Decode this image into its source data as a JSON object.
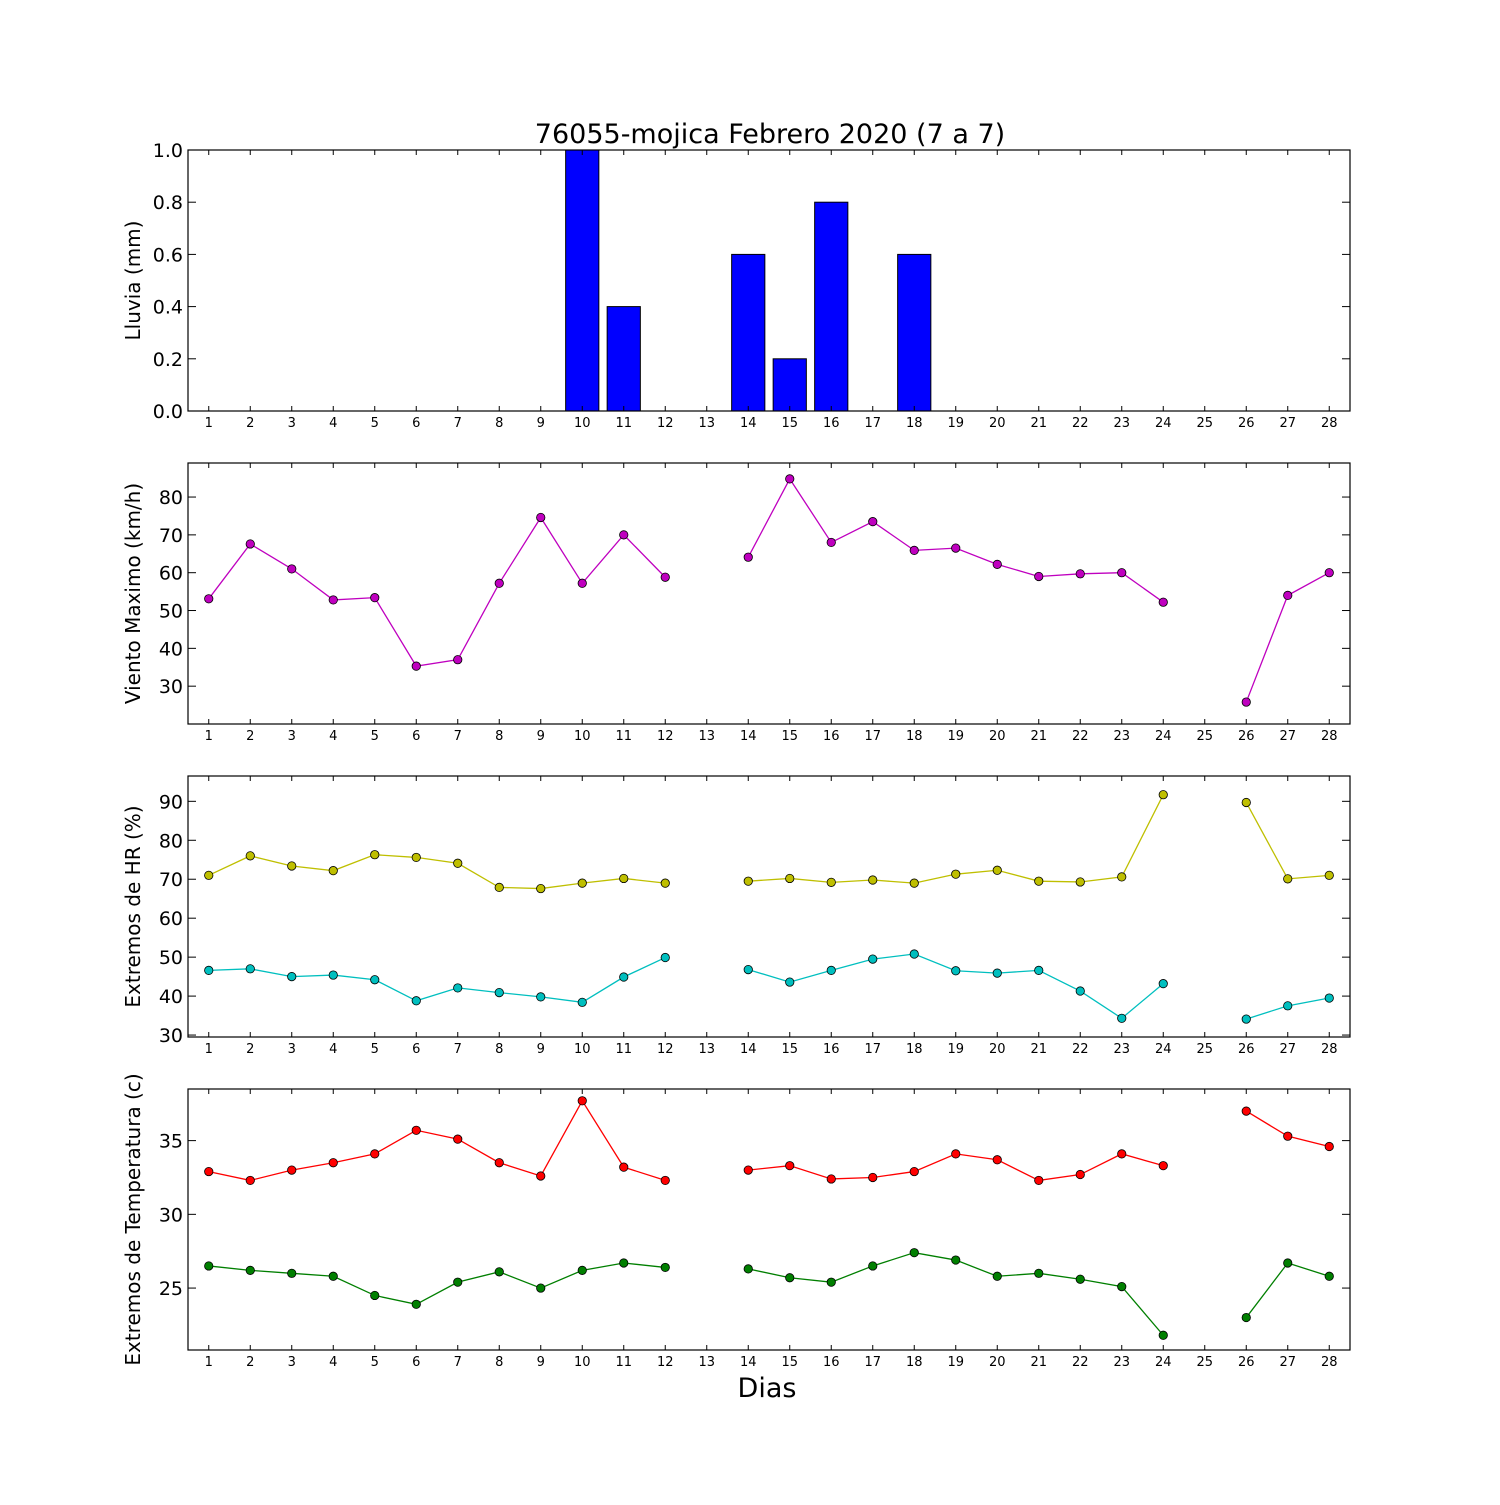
{
  "chart_data": [
    {
      "type": "bar",
      "title": "76055-mojica Febrero 2020  (7 a 7)",
      "xlabel": "",
      "ylabel": "Lluvia (mm)",
      "ylim": [
        0,
        1.0
      ],
      "yticks": [
        0.0,
        0.2,
        0.4,
        0.6,
        0.8,
        1.0
      ],
      "ytick_labels": [
        "0.0",
        "0.2",
        "0.4",
        "0.6",
        "0.8",
        "1.0"
      ],
      "xlim": [
        0.5,
        28.5
      ],
      "x_ticks": [
        1,
        2,
        3,
        4,
        5,
        6,
        7,
        8,
        9,
        10,
        11,
        12,
        13,
        14,
        15,
        16,
        17,
        18,
        19,
        20,
        21,
        22,
        23,
        24,
        25,
        26,
        27,
        28
      ],
      "x": [
        1,
        2,
        3,
        4,
        5,
        6,
        7,
        8,
        9,
        10,
        11,
        12,
        13,
        14,
        15,
        16,
        17,
        18,
        19,
        20,
        21,
        22,
        23,
        24,
        25,
        26,
        27,
        28
      ],
      "values": [
        0,
        0,
        0,
        0,
        0,
        0,
        0,
        0,
        0,
        1.0,
        0.4,
        0,
        null,
        0.6,
        0.2,
        0.8,
        0,
        0.6,
        0,
        0,
        0,
        0,
        0,
        0,
        null,
        0,
        0,
        0
      ],
      "bar_color": "#0000ff",
      "grid": false
    },
    {
      "type": "line",
      "xlabel": "",
      "ylabel": "Viento Maximo (km/h)",
      "ylim": [
        20,
        89
      ],
      "yticks": [
        30,
        40,
        50,
        60,
        70,
        80
      ],
      "ytick_labels": [
        "30",
        "40",
        "50",
        "60",
        "70",
        "80"
      ],
      "xlim": [
        0.5,
        28.5
      ],
      "x_ticks": [
        1,
        2,
        3,
        4,
        5,
        6,
        7,
        8,
        9,
        10,
        11,
        12,
        13,
        14,
        15,
        16,
        17,
        18,
        19,
        20,
        21,
        22,
        23,
        24,
        25,
        26,
        27,
        28
      ],
      "x": [
        1,
        2,
        3,
        4,
        5,
        6,
        7,
        8,
        9,
        10,
        11,
        12,
        13,
        14,
        15,
        16,
        17,
        18,
        19,
        20,
        21,
        22,
        23,
        24,
        25,
        26,
        27,
        28
      ],
      "series": [
        {
          "color": "#bf00bf",
          "values": [
            53.1,
            67.6,
            61.0,
            52.8,
            53.4,
            35.3,
            37.0,
            57.2,
            74.6,
            57.2,
            70.0,
            58.8,
            null,
            64.1,
            84.8,
            68.0,
            73.5,
            65.9,
            66.5,
            62.2,
            59.0,
            59.7,
            60.0,
            52.2,
            null,
            25.8,
            54.0,
            60.0
          ]
        }
      ],
      "grid": false
    },
    {
      "type": "line",
      "xlabel": "",
      "ylabel": "Extremos de HR (%)",
      "ylim": [
        29.5,
        96.5
      ],
      "yticks": [
        30,
        40,
        50,
        60,
        70,
        80,
        90
      ],
      "ytick_labels": [
        "30",
        "40",
        "50",
        "60",
        "70",
        "80",
        "90"
      ],
      "xlim": [
        0.5,
        28.5
      ],
      "x_ticks": [
        1,
        2,
        3,
        4,
        5,
        6,
        7,
        8,
        9,
        10,
        11,
        12,
        13,
        14,
        15,
        16,
        17,
        18,
        19,
        20,
        21,
        22,
        23,
        24,
        25,
        26,
        27,
        28
      ],
      "x": [
        1,
        2,
        3,
        4,
        5,
        6,
        7,
        8,
        9,
        10,
        11,
        12,
        13,
        14,
        15,
        16,
        17,
        18,
        19,
        20,
        21,
        22,
        23,
        24,
        25,
        26,
        27,
        28
      ],
      "series": [
        {
          "color": "#bfbf00",
          "values": [
            71.0,
            76.0,
            73.4,
            72.2,
            76.3,
            75.6,
            74.1,
            67.9,
            67.6,
            69.0,
            70.2,
            69.0,
            null,
            69.5,
            70.2,
            69.2,
            69.8,
            69.0,
            71.3,
            72.3,
            69.5,
            69.3,
            70.6,
            91.7,
            null,
            89.7,
            70.1,
            71.0
          ]
        },
        {
          "color": "#00bfbf",
          "values": [
            46.6,
            47.0,
            45.0,
            45.4,
            44.2,
            38.8,
            42.1,
            40.9,
            39.8,
            38.4,
            44.9,
            49.9,
            null,
            46.8,
            43.6,
            46.6,
            49.5,
            50.8,
            46.5,
            45.9,
            46.6,
            41.3,
            34.3,
            43.2,
            null,
            34.1,
            37.5,
            39.5
          ]
        }
      ],
      "grid": false
    },
    {
      "type": "line",
      "xlabel": "Dias",
      "ylabel": "Extremos de Temperatura (c)",
      "ylim": [
        20.8,
        38.5
      ],
      "yticks": [
        25,
        30,
        35
      ],
      "ytick_labels": [
        "25",
        "30",
        "35"
      ],
      "xlim": [
        0.5,
        28.5
      ],
      "x_ticks": [
        1,
        2,
        3,
        4,
        5,
        6,
        7,
        8,
        9,
        10,
        11,
        12,
        13,
        14,
        15,
        16,
        17,
        18,
        19,
        20,
        21,
        22,
        23,
        24,
        25,
        26,
        27,
        28
      ],
      "x": [
        1,
        2,
        3,
        4,
        5,
        6,
        7,
        8,
        9,
        10,
        11,
        12,
        13,
        14,
        15,
        16,
        17,
        18,
        19,
        20,
        21,
        22,
        23,
        24,
        25,
        26,
        27,
        28
      ],
      "series": [
        {
          "color": "#ff0000",
          "values": [
            32.9,
            32.3,
            33.0,
            33.5,
            34.1,
            35.7,
            35.1,
            33.5,
            32.6,
            37.7,
            33.2,
            32.3,
            null,
            33.0,
            33.3,
            32.4,
            32.5,
            32.9,
            34.1,
            33.7,
            32.3,
            32.7,
            34.1,
            33.3,
            null,
            37.0,
            35.3,
            34.6
          ]
        },
        {
          "color": "#007f00",
          "values": [
            26.5,
            26.2,
            26.0,
            25.8,
            24.5,
            23.9,
            25.4,
            26.1,
            25.0,
            26.2,
            26.7,
            26.4,
            null,
            26.3,
            25.7,
            25.4,
            26.5,
            27.4,
            26.9,
            25.8,
            26.0,
            25.6,
            25.1,
            21.8,
            null,
            23.0,
            26.7,
            25.8
          ]
        }
      ],
      "grid": false
    }
  ]
}
